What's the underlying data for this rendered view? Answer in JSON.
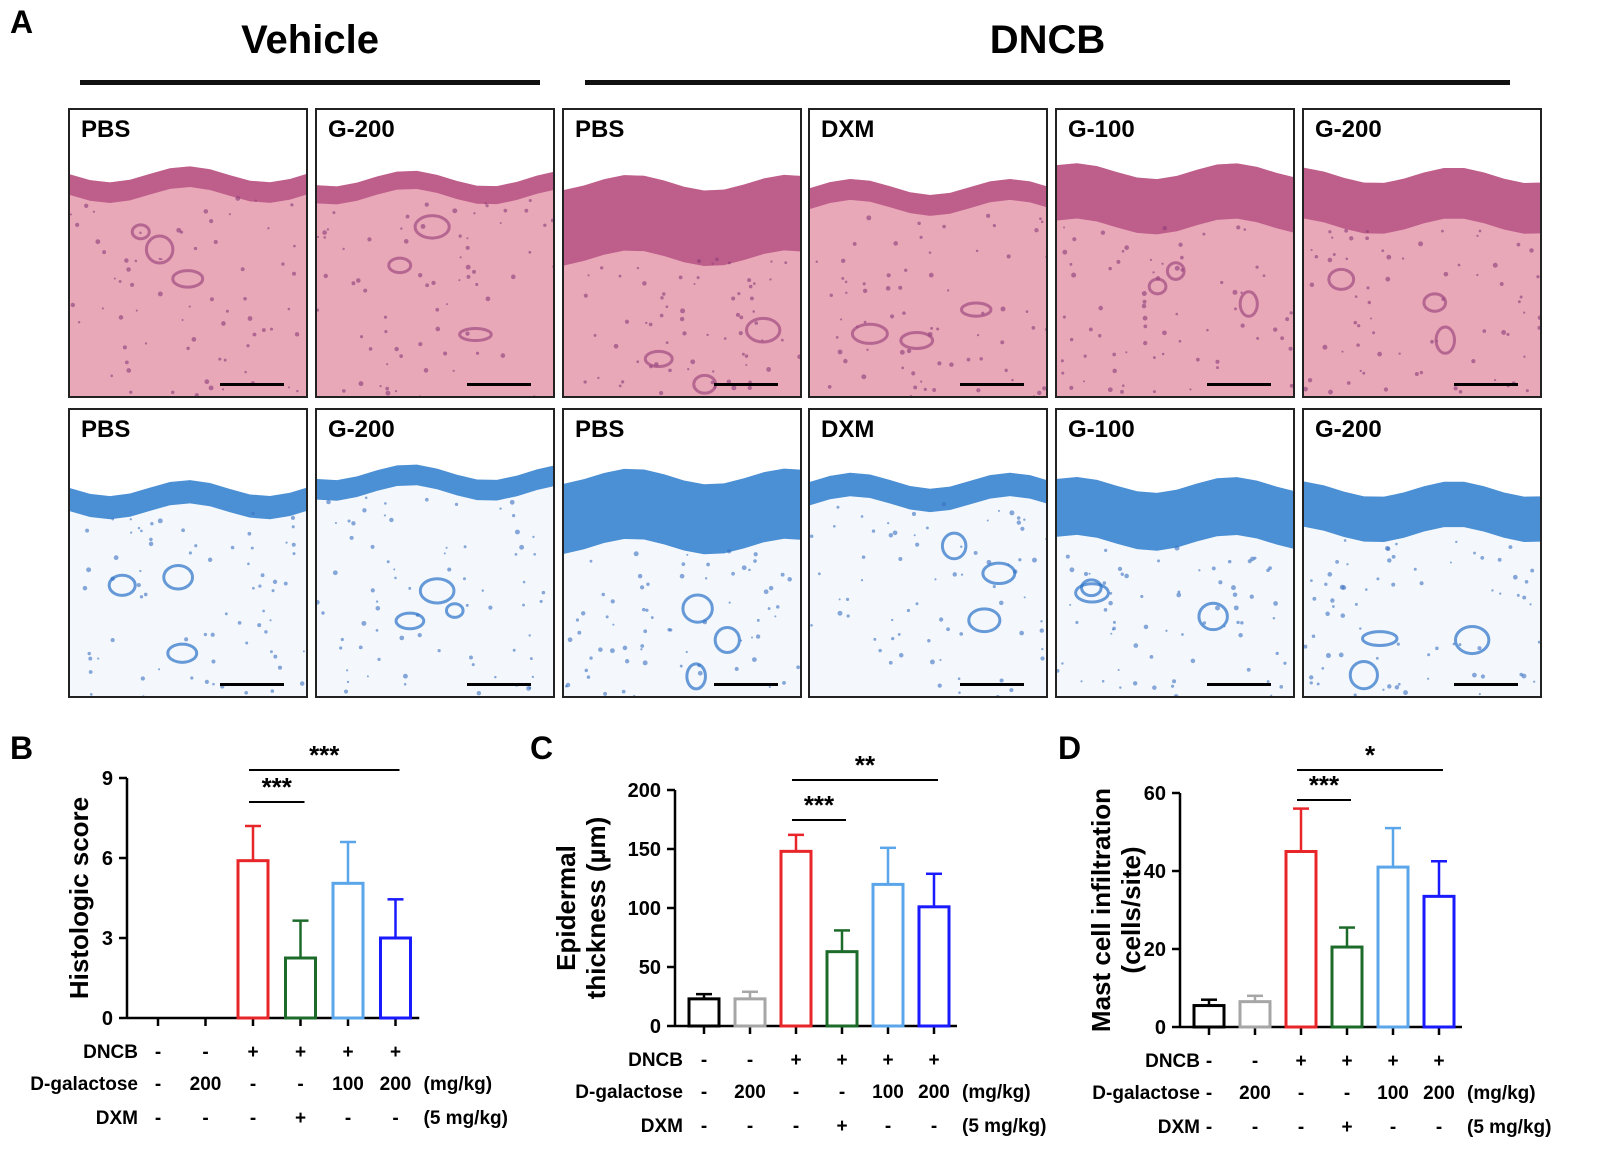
{
  "figure": {
    "panel_a_label": "A",
    "vehicle_title": "Vehicle",
    "dncb_title": "DNCB",
    "he_row": [
      {
        "label": "PBS"
      },
      {
        "label": "G-200"
      },
      {
        "label": "PBS"
      },
      {
        "label": "DXM"
      },
      {
        "label": "G-100"
      },
      {
        "label": "G-200"
      }
    ],
    "tb_row": [
      {
        "label": "PBS"
      },
      {
        "label": "G-200"
      },
      {
        "label": "PBS"
      },
      {
        "label": "DXM"
      },
      {
        "label": "G-100"
      },
      {
        "label": "G-200"
      }
    ],
    "colors": {
      "control": "#000000",
      "g200_vehicle": "#a6a6a6",
      "dncb_pbs": "#e8262a",
      "dxm": "#1d6b2a",
      "g100": "#5ba6ea",
      "g200_dncb": "#1a1aff",
      "he_tissue": "#e8a8b8",
      "he_epidermis": "#b0457c",
      "tb_tissue": "#f4f8fc",
      "tb_epidermis": "#2d7ccc"
    }
  },
  "chart_data": [
    {
      "panel": "B",
      "type": "bar",
      "ylabel": "Histologic score",
      "ylim": [
        0,
        9
      ],
      "yticks": [
        0,
        3,
        6,
        9
      ],
      "categories": [
        "Vehicle/PBS",
        "Vehicle/G-200",
        "DNCB/PBS",
        "DNCB/DXM",
        "DNCB/G-100",
        "DNCB/G-200"
      ],
      "values": [
        0,
        0,
        5.9,
        2.25,
        5.05,
        3.0
      ],
      "errors": [
        0,
        0,
        1.3,
        1.4,
        1.55,
        1.45
      ],
      "row_labels": [
        "DNCB",
        "D-galactose",
        "DXM"
      ],
      "rows": [
        [
          "-",
          "-",
          "+",
          "+",
          "+",
          "+"
        ],
        [
          "-",
          "200",
          "-",
          "-",
          "100",
          "200"
        ],
        [
          "-",
          "-",
          "-",
          "+",
          "-",
          "-"
        ]
      ],
      "row_units": [
        "",
        "(mg/kg)",
        "(5 mg/kg)"
      ],
      "significance": [
        {
          "from": 2,
          "to": 3,
          "label": "***",
          "level": 1
        },
        {
          "from": 2,
          "to": 5,
          "label": "***",
          "level": 2
        }
      ]
    },
    {
      "panel": "C",
      "type": "bar",
      "ylabel": "Epidermal",
      "ylabel2": "thickness (µm)",
      "ylim": [
        0,
        200
      ],
      "yticks": [
        0,
        50,
        100,
        150,
        200
      ],
      "categories": [
        "Vehicle/PBS",
        "Vehicle/G-200",
        "DNCB/PBS",
        "DNCB/DXM",
        "DNCB/G-100",
        "DNCB/G-200"
      ],
      "values": [
        23,
        23,
        148,
        63,
        120,
        101
      ],
      "errors": [
        4,
        6,
        14,
        18,
        31,
        28
      ],
      "row_labels": [
        "DNCB",
        "D-galactose",
        "DXM"
      ],
      "rows": [
        [
          "-",
          "-",
          "+",
          "+",
          "+",
          "+"
        ],
        [
          "-",
          "200",
          "-",
          "-",
          "100",
          "200"
        ],
        [
          "-",
          "-",
          "-",
          "+",
          "-",
          "-"
        ]
      ],
      "row_units": [
        "",
        "(mg/kg)",
        "(5 mg/kg)"
      ],
      "significance": [
        {
          "from": 2,
          "to": 3,
          "label": "***",
          "level": 1
        },
        {
          "from": 2,
          "to": 5,
          "label": "**",
          "level": 2
        }
      ]
    },
    {
      "panel": "D",
      "type": "bar",
      "ylabel": "Mast cell infiltration",
      "ylabel2": "(cells/site)",
      "ylim": [
        0,
        60
      ],
      "yticks": [
        0,
        20,
        40,
        60
      ],
      "categories": [
        "Vehicle/PBS",
        "Vehicle/G-200",
        "DNCB/PBS",
        "DNCB/DXM",
        "DNCB/G-100",
        "DNCB/G-200"
      ],
      "values": [
        5.5,
        6.5,
        45,
        20.5,
        41,
        33.5
      ],
      "errors": [
        1.5,
        1.5,
        11,
        5,
        10,
        9
      ],
      "row_labels": [
        "DNCB",
        "D-galactose",
        "DXM"
      ],
      "rows": [
        [
          "-",
          "-",
          "+",
          "+",
          "+",
          "+"
        ],
        [
          "-",
          "200",
          "-",
          "-",
          "100",
          "200"
        ],
        [
          "-",
          "-",
          "-",
          "+",
          "-",
          "-"
        ]
      ],
      "row_units": [
        "",
        "(mg/kg)",
        "(5 mg/kg)"
      ],
      "significance": [
        {
          "from": 2,
          "to": 3,
          "label": "***",
          "level": 1
        },
        {
          "from": 2,
          "to": 5,
          "label": "*",
          "level": 2
        }
      ]
    }
  ]
}
